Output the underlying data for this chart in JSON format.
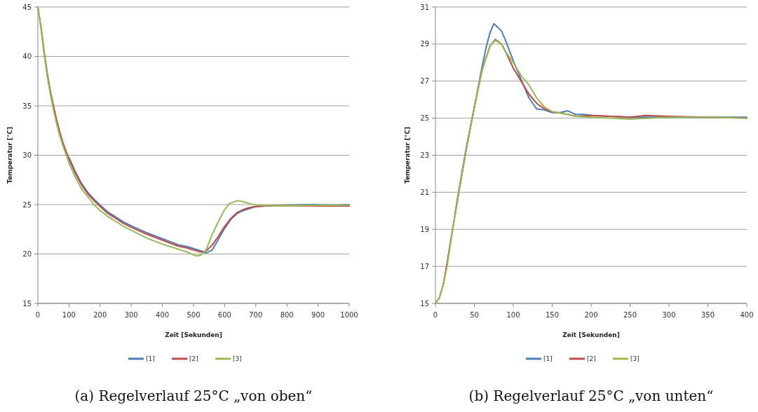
{
  "chart_data": [
    {
      "type": "line",
      "title": "(a) Regelverlauf 25°C „von oben“",
      "xlabel": "Zeit [Sekunden]",
      "ylabel": "Temperatur [°C]",
      "xlim": [
        0,
        1000
      ],
      "xticks": [
        0,
        100,
        200,
        300,
        400,
        500,
        600,
        700,
        800,
        900,
        1000
      ],
      "ylim": [
        15,
        45
      ],
      "yticks": [
        15,
        20,
        25,
        30,
        35,
        40,
        45
      ],
      "grid": "y",
      "legend": "bottom",
      "line_style": "solid",
      "series": [
        {
          "name": "[1]",
          "color": "#4a7ebb",
          "x": [
            100,
            120,
            140,
            160,
            180,
            200,
            225,
            250,
            275,
            300,
            350,
            400,
            450,
            480,
            500,
            525,
            540,
            560,
            575,
            600,
            620,
            640,
            660,
            700,
            750,
            800,
            880,
            950,
            1000
          ],
          "values": [
            29.75,
            28.35,
            27.15,
            26.25,
            25.55,
            24.95,
            24.25,
            23.75,
            23.25,
            22.85,
            22.15,
            21.55,
            20.95,
            20.75,
            20.55,
            20.3,
            20.1,
            20.4,
            21.2,
            22.6,
            23.5,
            24.1,
            24.4,
            24.8,
            24.9,
            24.95,
            25,
            24.95,
            25
          ]
        },
        {
          "name": "[2]",
          "color": "#be4b48",
          "x": [
            0,
            10,
            20,
            30,
            40,
            50,
            60,
            70,
            80,
            100,
            120,
            140,
            160,
            180,
            200,
            225,
            250,
            275,
            300,
            350,
            400,
            450,
            480,
            500,
            525,
            540,
            560,
            580,
            600,
            620,
            640,
            660,
            680,
            700,
            750,
            800,
            900,
            1000
          ],
          "values": [
            45,
            43,
            40.5,
            38.3,
            36.5,
            35,
            33.6,
            32.4,
            31.3,
            29.6,
            28.2,
            27,
            26.1,
            25.4,
            24.8,
            24.1,
            23.6,
            23.1,
            22.7,
            22,
            21.4,
            20.8,
            20.6,
            20.4,
            20.2,
            20.3,
            20.9,
            21.8,
            22.8,
            23.6,
            24.2,
            24.5,
            24.7,
            24.8,
            24.9,
            24.9,
            24.85,
            24.85
          ]
        },
        {
          "name": "[3]",
          "color": "#98b954",
          "x": [
            0,
            10,
            20,
            30,
            40,
            50,
            60,
            70,
            80,
            100,
            120,
            140,
            160,
            180,
            200,
            225,
            250,
            275,
            300,
            350,
            400,
            450,
            480,
            500,
            510,
            525,
            540,
            560,
            580,
            600,
            615,
            640,
            660,
            680,
            700,
            750,
            1000
          ],
          "values": [
            45,
            42.8,
            40.2,
            38,
            36.2,
            34.6,
            33.2,
            32,
            31,
            29.2,
            27.8,
            26.6,
            25.8,
            25,
            24.4,
            23.8,
            23.3,
            22.8,
            22.4,
            21.6,
            21,
            20.5,
            20.2,
            19.9,
            19.8,
            19.9,
            20.4,
            22,
            23.3,
            24.5,
            25.1,
            25.4,
            25.3,
            25.1,
            24.95,
            24.9,
            24.95
          ]
        }
      ]
    },
    {
      "type": "line",
      "title": "(b) Regelverlauf 25°C „von unten“",
      "xlabel": "Zeit [Sekunden]",
      "ylabel": "Temperatur [°C]",
      "xlim": [
        0,
        400
      ],
      "xticks": [
        0,
        50,
        100,
        150,
        200,
        250,
        300,
        350,
        400
      ],
      "ylim": [
        15,
        31
      ],
      "yticks": [
        15,
        17,
        19,
        21,
        23,
        25,
        27,
        29,
        31
      ],
      "grid": "y",
      "legend": "bottom",
      "line_style": "solid",
      "series": [
        {
          "name": "[1]",
          "color": "#4a7ebb",
          "x": [
            25,
            30,
            40,
            50,
            60,
            65,
            70,
            75,
            80,
            85,
            90,
            100,
            110,
            120,
            130,
            140,
            150,
            160,
            170,
            180,
            190,
            200,
            250,
            300,
            350,
            400
          ],
          "values": [
            19.8,
            21.1,
            23.5,
            25.6,
            27.8,
            28.8,
            29.6,
            30.1,
            29.9,
            29.7,
            29.2,
            28.1,
            27.1,
            26.1,
            25.5,
            25.45,
            25.3,
            25.3,
            25.4,
            25.2,
            25.2,
            25.15,
            25.05,
            25.05,
            25.05,
            25.05
          ]
        },
        {
          "name": "[2]",
          "color": "#be4b48",
          "x": [
            0,
            5,
            10,
            15,
            20,
            30,
            40,
            50,
            60,
            70,
            77,
            85,
            90,
            100,
            110,
            120,
            130,
            140,
            150,
            170,
            180,
            200,
            250,
            270,
            300,
            350,
            400
          ],
          "values": [
            15,
            15.3,
            16,
            17.2,
            18.5,
            21,
            23.4,
            25.6,
            27.6,
            28.9,
            29.25,
            29,
            28.6,
            27.7,
            27,
            26.3,
            25.8,
            25.5,
            25.35,
            25.2,
            25.1,
            25.15,
            25.05,
            25.15,
            25.1,
            25.05,
            25
          ]
        },
        {
          "name": "[3]",
          "color": "#98b954",
          "x": [
            0,
            5,
            10,
            15,
            20,
            30,
            40,
            50,
            60,
            70,
            77,
            85,
            90,
            100,
            110,
            120,
            130,
            140,
            150,
            170,
            180,
            200,
            250,
            300,
            350,
            400
          ],
          "values": [
            15,
            15.3,
            16,
            17,
            18.4,
            21,
            23.4,
            25.6,
            27.6,
            28.9,
            29.2,
            29,
            28.6,
            28,
            27.3,
            26.8,
            26.1,
            25.6,
            25.35,
            25.2,
            25.1,
            25.05,
            24.95,
            25.05,
            25.05,
            25
          ]
        }
      ]
    }
  ]
}
